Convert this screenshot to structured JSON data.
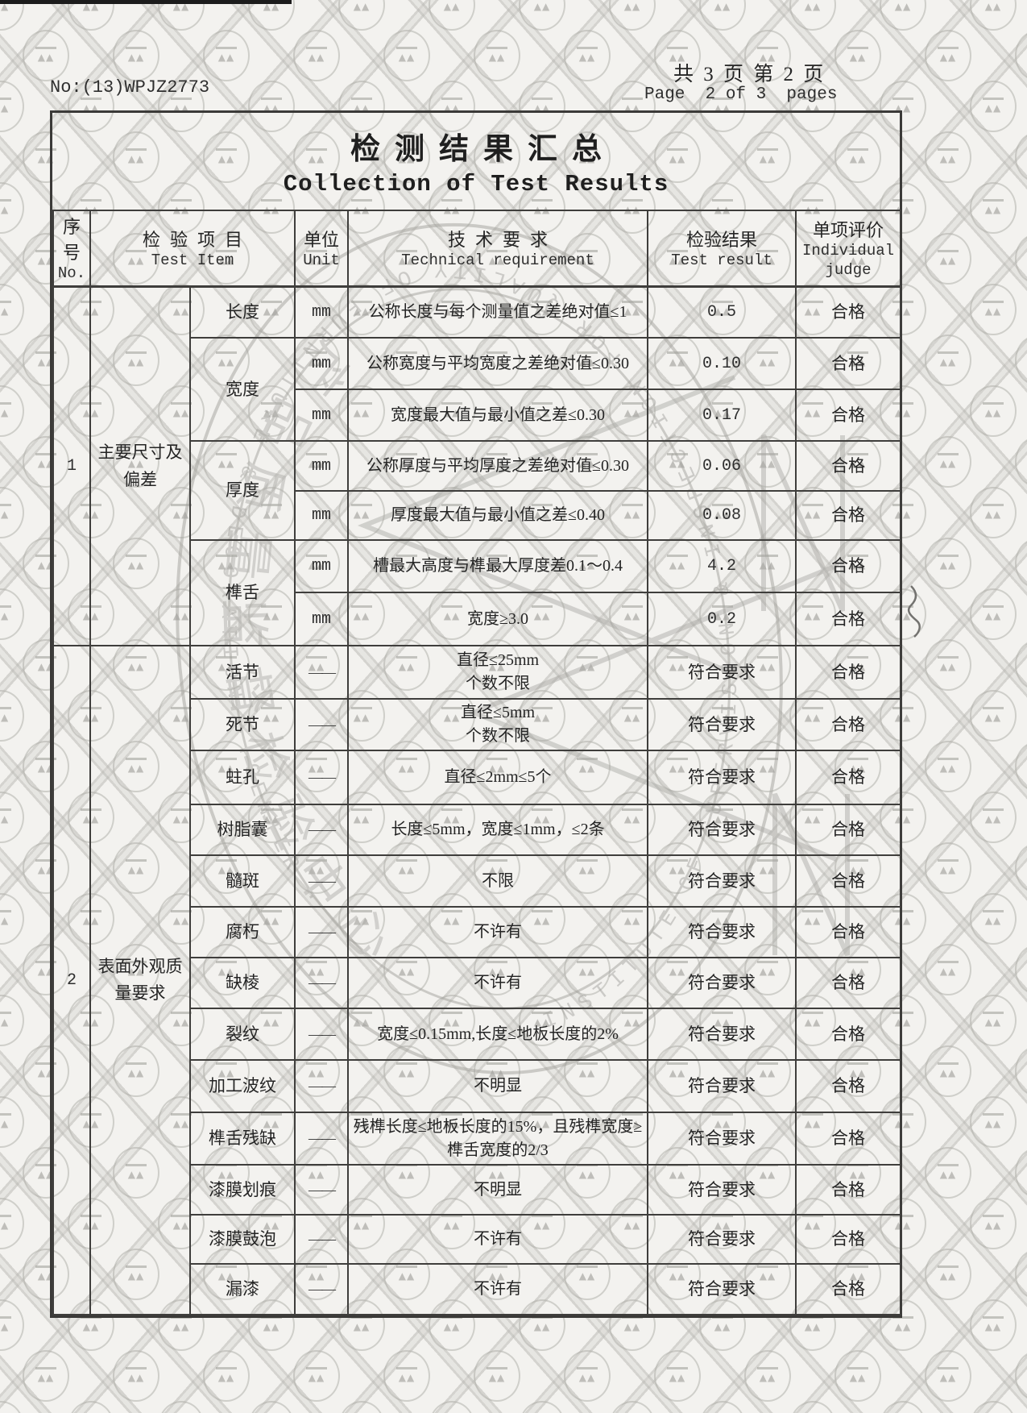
{
  "page": {
    "report_no": "No:(13)WPJZ2773",
    "sheet_info_cn": "共 3 页 第 2 页",
    "sheet_info_en": "Page  2 of 3  pages",
    "title_cn": "检测结果汇总",
    "title_en": "Collection of Test Results"
  },
  "table": {
    "headers": {
      "no_cn": "序号",
      "no_en": "No.",
      "item_cn": "检验项目",
      "item_en": "Test Item",
      "unit_cn": "单位",
      "unit_en": "Unit",
      "req_cn": "技术要求",
      "req_en": "Technical requirement",
      "result_cn": "检验结果",
      "result_en": "Test result",
      "judge_cn": "单项评价",
      "judge_en": "Individual judge"
    },
    "s1": {
      "no": "1",
      "name": "主要尺寸及偏差",
      "rows": [
        {
          "item": "长度",
          "unit": "mm",
          "req": "公称长度与每个测量值之差绝对值≤1",
          "result": "0.5",
          "judge": "合格"
        },
        {
          "item": "宽度",
          "unit": "mm",
          "req": "公称宽度与平均宽度之差绝对值≤0.30",
          "result": "0.10",
          "judge": "合格"
        },
        {
          "unit": "mm",
          "req": "宽度最大值与最小值之差≤0.30",
          "result": "0.17",
          "judge": "合格"
        },
        {
          "item": "厚度",
          "unit": "mm",
          "req": "公称厚度与平均厚度之差绝对值≤0.30",
          "result": "0.06",
          "judge": "合格"
        },
        {
          "unit": "mm",
          "req": "厚度最大值与最小值之差≤0.40",
          "result": "0.08",
          "judge": "合格"
        },
        {
          "item": "榫舌",
          "unit": "mm",
          "req": "槽最大高度与榫最大厚度差0.1～0.4",
          "result": "4.2",
          "judge": "合格"
        },
        {
          "unit": "mm",
          "req": "宽度≥3.0",
          "result": "0.2",
          "judge": "合格"
        }
      ]
    },
    "s2": {
      "no": "2",
      "name": "表面外观质量要求",
      "rows": [
        {
          "item": "活节",
          "unit": "——",
          "req": "直径≤25mm\n个数不限",
          "result": "符合要求",
          "judge": "合格"
        },
        {
          "item": "死节",
          "unit": "——",
          "req": "直径≤5mm\n个数不限",
          "result": "符合要求",
          "judge": "合格"
        },
        {
          "item": "蛀孔",
          "unit": "——",
          "req": "直径≤2mm≤5个",
          "result": "符合要求",
          "judge": "合格"
        },
        {
          "item": "树脂囊",
          "unit": "——",
          "req": "长度≤5mm，宽度≤1mm，≤2条",
          "result": "符合要求",
          "judge": "合格"
        },
        {
          "item": "髓斑",
          "unit": "——",
          "req": "不限",
          "result": "符合要求",
          "judge": "合格"
        },
        {
          "item": "腐朽",
          "unit": "——",
          "req": "不许有",
          "result": "符合要求",
          "judge": "合格"
        },
        {
          "item": "缺棱",
          "unit": "——",
          "req": "不许有",
          "result": "符合要求",
          "judge": "合格"
        },
        {
          "item": "裂纹",
          "unit": "——",
          "req": "宽度≤0.15mm,长度≤地板长度的2%",
          "result": "符合要求",
          "judge": "合格"
        },
        {
          "item": "加工波纹",
          "unit": "——",
          "req": "不明显",
          "result": "符合要求",
          "judge": "合格"
        },
        {
          "item": "榫舌残缺",
          "unit": "——",
          "req": "残榫长度≤地板长度的15%，且残榫宽度≥榫舌宽度的2/3",
          "result": "符合要求",
          "judge": "合格"
        },
        {
          "item": "漆膜划痕",
          "unit": "——",
          "req": "不明显",
          "result": "符合要求",
          "judge": "合格"
        },
        {
          "item": "漆膜鼓泡",
          "unit": "——",
          "req": "不许有",
          "result": "符合要求",
          "judge": "合格"
        },
        {
          "item": "漏漆",
          "unit": "——",
          "req": "不许有",
          "result": "符合要求",
          "judge": "合格"
        }
      ]
    }
  },
  "watermark": {
    "ring_text": "INSTITUTE OF SUPERVISION & INSPECTION FOR QUALITY OF FURNITURE & DECORATION · CENTER ·",
    "cn_text": "产品质量监督检验中心"
  }
}
